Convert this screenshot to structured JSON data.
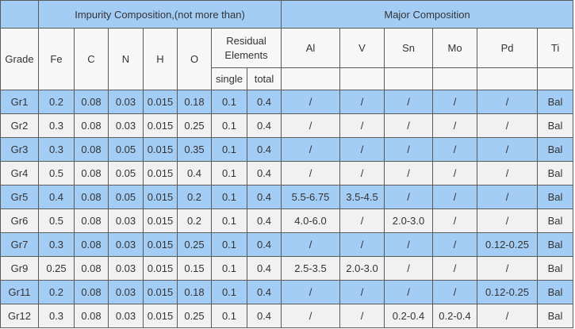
{
  "table": {
    "group_headers": [
      "Impurity Composition,(not more than)",
      "Major Composition"
    ],
    "grade_header": "Grade",
    "impurity_columns": [
      "Fe",
      "C",
      "N",
      "H",
      "O"
    ],
    "residual_header": "Residual Elements",
    "residual_columns": [
      "single",
      "total"
    ],
    "major_columns": [
      "Al",
      "V",
      "Sn",
      "Mo",
      "Pd",
      "Ti"
    ],
    "rows": [
      [
        "Gr1",
        "0.2",
        "0.08",
        "0.03",
        "0.015",
        "0.18",
        "0.1",
        "0.4",
        "/",
        "/",
        "/",
        "/",
        "/",
        "Bal"
      ],
      [
        "Gr2",
        "0.3",
        "0.08",
        "0.03",
        "0.015",
        "0.25",
        "0.1",
        "0.4",
        "/",
        "/",
        "/",
        "/",
        "/",
        "Bal"
      ],
      [
        "Gr3",
        "0.3",
        "0.08",
        "0.05",
        "0.015",
        "0.35",
        "0.1",
        "0.4",
        "/",
        "/",
        "/",
        "/",
        "/",
        "Bal"
      ],
      [
        "Gr4",
        "0.5",
        "0.08",
        "0.05",
        "0.015",
        "0.4",
        "0.1",
        "0.4",
        "/",
        "/",
        "/",
        "/",
        "/",
        "Bal"
      ],
      [
        "Gr5",
        "0.4",
        "0.08",
        "0.05",
        "0.015",
        "0.2",
        "0.1",
        "0.4",
        "5.5-6.75",
        "3.5-4.5",
        "/",
        "/",
        "/",
        "Bal"
      ],
      [
        "Gr6",
        "0.5",
        "0.08",
        "0.03",
        "0.015",
        "0.2",
        "0.1",
        "0.4",
        "4.0-6.0",
        "/",
        "2.0-3.0",
        "/",
        "/",
        "Bal"
      ],
      [
        "Gr7",
        "0.3",
        "0.08",
        "0.03",
        "0.015",
        "0.25",
        "0.1",
        "0.4",
        "/",
        "/",
        "/",
        "/",
        "0.12-0.25",
        "Bal"
      ],
      [
        "Gr9",
        "0.25",
        "0.08",
        "0.03",
        "0.015",
        "0.15",
        "0.1",
        "0.4",
        "2.5-3.5",
        "2.0-3.0",
        "/",
        "/",
        "/",
        "Bal"
      ],
      [
        "Gr11",
        "0.2",
        "0.08",
        "0.03",
        "0.015",
        "0.18",
        "0.1",
        "0.4",
        "/",
        "/",
        "/",
        "/",
        "0.12-0.25",
        "Bal"
      ],
      [
        "Gr12",
        "0.3",
        "0.08",
        "0.03",
        "0.015",
        "0.25",
        "0.1",
        "0.4",
        "/",
        "/",
        "0.2-0.4",
        "0.2-0.4",
        "/",
        "Bal"
      ]
    ]
  }
}
